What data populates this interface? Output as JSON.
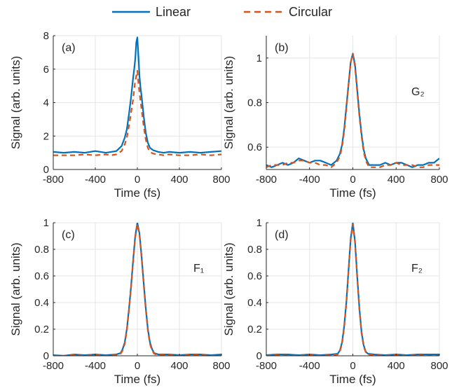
{
  "colors": {
    "linear": "#0072BD",
    "circular": "#D95319",
    "grid": "#e6e6e6",
    "axis": "#262626"
  },
  "legend": {
    "entries": [
      "Linear",
      "Circular"
    ],
    "placement": "top-center"
  },
  "chart_data": [
    {
      "type": "line",
      "label": "(a)",
      "annotation": "",
      "xlabel": "Time (fs)",
      "ylabel": "Signal (arb. units)",
      "xlim": [
        -800,
        800
      ],
      "ylim": [
        0,
        8
      ],
      "xticks": [
        -800,
        -400,
        0,
        400,
        800
      ],
      "yticks": [
        0,
        2,
        4,
        6,
        8
      ],
      "xtick_labels": [
        "-800",
        "-400",
        "0",
        "400",
        "800"
      ],
      "ytick_labels": [
        "0",
        "2",
        "4",
        "6",
        "8"
      ],
      "grid": true,
      "series": [
        {
          "name": "Linear",
          "style": "solid",
          "x": [
            -800,
            -700,
            -600,
            -500,
            -400,
            -300,
            -250,
            -200,
            -150,
            -120,
            -100,
            -80,
            -60,
            -40,
            -30,
            -20,
            -10,
            0,
            10,
            20,
            30,
            40,
            60,
            80,
            100,
            120,
            150,
            200,
            250,
            300,
            400,
            500,
            600,
            700,
            800
          ],
          "y": [
            1.05,
            1.0,
            1.05,
            1.0,
            1.1,
            1.0,
            1.05,
            1.1,
            1.4,
            1.9,
            2.4,
            3.3,
            4.3,
            5.5,
            6.0,
            6.6,
            7.6,
            7.9,
            6.8,
            5.6,
            4.9,
            4.4,
            3.2,
            2.2,
            1.6,
            1.3,
            1.15,
            1.05,
            1.0,
            1.05,
            1.0,
            1.05,
            1.0,
            1.05,
            1.1
          ]
        },
        {
          "name": "Circular",
          "style": "dashed",
          "x": [
            -800,
            -700,
            -600,
            -500,
            -400,
            -300,
            -250,
            -200,
            -150,
            -120,
            -100,
            -80,
            -60,
            -40,
            -30,
            -20,
            -10,
            0,
            10,
            20,
            30,
            40,
            60,
            80,
            100,
            120,
            150,
            200,
            250,
            300,
            400,
            500,
            600,
            700,
            800
          ],
          "y": [
            0.85,
            0.85,
            0.85,
            0.9,
            0.85,
            0.9,
            0.85,
            0.9,
            1.1,
            1.5,
            1.9,
            2.6,
            3.4,
            4.2,
            4.8,
            5.3,
            5.6,
            5.9,
            5.2,
            4.6,
            4.1,
            3.6,
            2.6,
            1.8,
            1.3,
            1.05,
            0.95,
            0.9,
            0.85,
            0.9,
            0.85,
            0.85,
            0.9,
            0.85,
            0.9
          ]
        }
      ]
    },
    {
      "type": "line",
      "label": "(b)",
      "annotation": "G₂",
      "xlabel": "Time (fs)",
      "ylabel": "Signal (arb. units)",
      "xlim": [
        -800,
        800
      ],
      "ylim": [
        0.5,
        1.1
      ],
      "xticks": [
        -800,
        -400,
        0,
        400,
        800
      ],
      "yticks": [
        0.6,
        0.8,
        1
      ],
      "xtick_labels": [
        "-800",
        "-400",
        "0",
        "400",
        "800"
      ],
      "ytick_labels": [
        "0.6",
        "0.8",
        "1"
      ],
      "grid": true,
      "series": [
        {
          "name": "Linear",
          "style": "solid",
          "x": [
            -800,
            -750,
            -700,
            -650,
            -600,
            -550,
            -500,
            -450,
            -400,
            -350,
            -300,
            -250,
            -200,
            -150,
            -120,
            -100,
            -80,
            -60,
            -40,
            -20,
            0,
            20,
            40,
            60,
            80,
            100,
            120,
            150,
            200,
            250,
            300,
            350,
            400,
            450,
            500,
            550,
            600,
            650,
            700,
            750,
            800
          ],
          "y": [
            0.52,
            0.51,
            0.52,
            0.53,
            0.52,
            0.53,
            0.55,
            0.54,
            0.53,
            0.54,
            0.54,
            0.53,
            0.52,
            0.54,
            0.57,
            0.61,
            0.68,
            0.78,
            0.88,
            0.98,
            1.02,
            0.97,
            0.86,
            0.75,
            0.66,
            0.59,
            0.55,
            0.52,
            0.52,
            0.52,
            0.53,
            0.52,
            0.53,
            0.53,
            0.52,
            0.51,
            0.52,
            0.52,
            0.53,
            0.53,
            0.55
          ]
        },
        {
          "name": "Circular",
          "style": "dashed",
          "x": [
            -800,
            -750,
            -700,
            -650,
            -600,
            -550,
            -500,
            -450,
            -400,
            -350,
            -300,
            -250,
            -200,
            -150,
            -120,
            -100,
            -80,
            -60,
            -40,
            -20,
            0,
            20,
            40,
            60,
            80,
            100,
            120,
            150,
            200,
            250,
            300,
            350,
            400,
            450,
            500,
            550,
            600,
            650,
            700,
            750,
            800
          ],
          "y": [
            0.51,
            0.52,
            0.52,
            0.52,
            0.53,
            0.53,
            0.54,
            0.54,
            0.53,
            0.53,
            0.52,
            0.52,
            0.51,
            0.53,
            0.56,
            0.6,
            0.67,
            0.77,
            0.88,
            0.98,
            1.02,
            0.96,
            0.85,
            0.74,
            0.65,
            0.58,
            0.54,
            0.51,
            0.51,
            0.51,
            0.52,
            0.52,
            0.53,
            0.52,
            0.52,
            0.52,
            0.51,
            0.51,
            0.52,
            0.52,
            0.52
          ]
        }
      ]
    },
    {
      "type": "line",
      "label": "(c)",
      "annotation": "F₁",
      "xlabel": "Time (fs)",
      "ylabel": "Signal (arb. units)",
      "xlim": [
        -800,
        800
      ],
      "ylim": [
        0,
        1
      ],
      "xticks": [
        -800,
        -400,
        0,
        400,
        800
      ],
      "yticks": [
        0,
        0.2,
        0.4,
        0.6,
        0.8,
        1
      ],
      "xtick_labels": [
        "-800",
        "-400",
        "0",
        "400",
        "800"
      ],
      "ytick_labels": [
        "0",
        "0.2",
        "0.4",
        "0.6",
        "0.8",
        "1"
      ],
      "grid": true,
      "series": [
        {
          "name": "Linear",
          "style": "solid",
          "x": [
            -800,
            -700,
            -600,
            -500,
            -400,
            -300,
            -200,
            -160,
            -140,
            -120,
            -100,
            -80,
            -60,
            -40,
            -20,
            0,
            20,
            40,
            60,
            80,
            100,
            120,
            140,
            160,
            200,
            300,
            400,
            500,
            600,
            700,
            800
          ],
          "y": [
            0.005,
            0.0,
            0.01,
            0.005,
            0.01,
            0.005,
            0.01,
            0.02,
            0.05,
            0.1,
            0.2,
            0.35,
            0.52,
            0.72,
            0.9,
            1.0,
            0.92,
            0.75,
            0.55,
            0.36,
            0.2,
            0.1,
            0.05,
            0.02,
            0.01,
            0.01,
            0.005,
            0.01,
            0.01,
            0.005,
            0.01
          ]
        },
        {
          "name": "Circular",
          "style": "dashed",
          "x": [
            -800,
            -700,
            -600,
            -500,
            -400,
            -300,
            -200,
            -160,
            -140,
            -120,
            -100,
            -80,
            -60,
            -40,
            -20,
            0,
            20,
            40,
            60,
            80,
            100,
            120,
            140,
            160,
            200,
            300,
            400,
            500,
            600,
            700,
            800
          ],
          "y": [
            0.0,
            0.0,
            0.005,
            0.0,
            0.005,
            0.0,
            0.005,
            0.015,
            0.04,
            0.09,
            0.19,
            0.34,
            0.51,
            0.71,
            0.89,
            0.99,
            0.91,
            0.74,
            0.54,
            0.35,
            0.19,
            0.09,
            0.04,
            0.015,
            0.005,
            0.005,
            0.0,
            0.005,
            0.005,
            0.0,
            0.0
          ]
        }
      ]
    },
    {
      "type": "line",
      "label": "(d)",
      "annotation": "F₂",
      "xlabel": "Time (fs)",
      "ylabel": "Signal (arb. units)",
      "xlim": [
        -800,
        800
      ],
      "ylim": [
        0,
        1
      ],
      "xticks": [
        -800,
        -400,
        0,
        400,
        800
      ],
      "yticks": [
        0,
        0.2,
        0.4,
        0.6,
        0.8,
        1
      ],
      "xtick_labels": [
        "-800",
        "-400",
        "0",
        "400",
        "800"
      ],
      "ytick_labels": [
        "0",
        "0.2",
        "0.4",
        "0.6",
        "0.8",
        "1"
      ],
      "grid": true,
      "series": [
        {
          "name": "Linear",
          "style": "solid",
          "x": [
            -800,
            -700,
            -600,
            -500,
            -400,
            -300,
            -200,
            -140,
            -120,
            -100,
            -80,
            -60,
            -40,
            -20,
            0,
            20,
            40,
            60,
            80,
            100,
            120,
            140,
            200,
            300,
            400,
            500,
            600,
            700,
            800
          ],
          "y": [
            0.005,
            0.01,
            0.01,
            0.005,
            0.01,
            0.005,
            0.01,
            0.015,
            0.04,
            0.1,
            0.22,
            0.4,
            0.64,
            0.88,
            1.0,
            0.86,
            0.6,
            0.36,
            0.18,
            0.08,
            0.03,
            0.015,
            0.01,
            0.005,
            0.01,
            0.005,
            0.01,
            0.01,
            0.01
          ]
        },
        {
          "name": "Circular",
          "style": "dashed",
          "x": [
            -800,
            -700,
            -600,
            -500,
            -400,
            -300,
            -200,
            -140,
            -120,
            -100,
            -80,
            -60,
            -40,
            -20,
            0,
            20,
            40,
            60,
            80,
            100,
            120,
            140,
            200,
            300,
            400,
            500,
            600,
            700,
            800
          ],
          "y": [
            0.0,
            0.005,
            0.0,
            0.0,
            0.005,
            0.0,
            0.005,
            0.01,
            0.035,
            0.09,
            0.21,
            0.39,
            0.63,
            0.87,
            0.99,
            0.85,
            0.59,
            0.35,
            0.17,
            0.07,
            0.025,
            0.01,
            0.005,
            0.0,
            0.005,
            0.0,
            0.005,
            0.0,
            0.0
          ]
        }
      ]
    }
  ]
}
